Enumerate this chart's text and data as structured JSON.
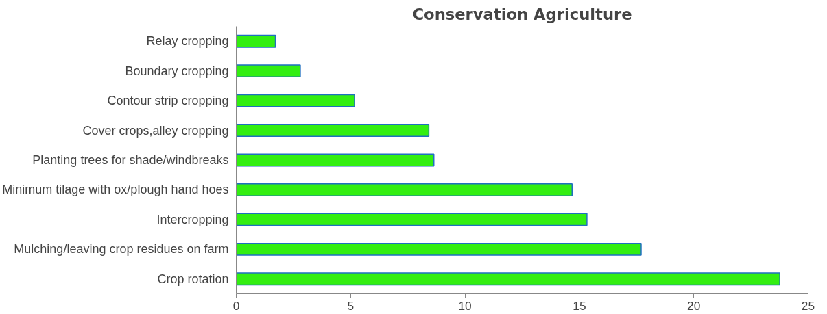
{
  "chart_data": {
    "type": "bar",
    "orientation": "horizontal",
    "title": "Conservation Agriculture",
    "categories": [
      "Relay cropping",
      "Boundary cropping",
      "Contour strip cropping",
      "Cover crops,alley cropping",
      "Planting trees for shade/windbreaks",
      "Minimum tilage with ox/plough hand hoes",
      "Intercropping",
      "Mulching/leaving crop residues on farm",
      "Crop rotation"
    ],
    "values": [
      1.71,
      2.8,
      5.17,
      8.42,
      8.64,
      14.68,
      15.33,
      17.7,
      23.76
    ],
    "color": "#33ee11",
    "xlim": [
      0,
      25
    ],
    "xticks": [
      0,
      5,
      10,
      15,
      20,
      25
    ],
    "grid": false
  }
}
